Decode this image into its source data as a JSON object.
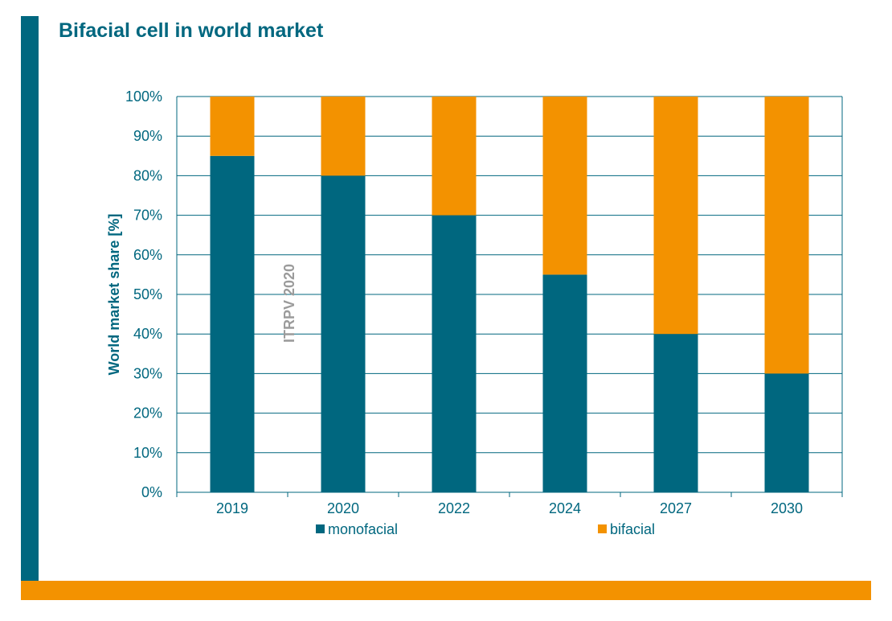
{
  "title": "Bifacial cell in world market",
  "colors": {
    "accent_blue": "#00677F",
    "accent_orange": "#F39200",
    "grid": "#00677F",
    "watermark": "#9B9B9B"
  },
  "watermark": "ITRPV 2020",
  "chart_data": {
    "type": "bar",
    "stacked": true,
    "title": "Bifacial cell in world market",
    "xlabel": "",
    "ylabel": "World market share [%]",
    "ylim": [
      0,
      100
    ],
    "yticks": [
      "0%",
      "10%",
      "20%",
      "30%",
      "40%",
      "50%",
      "60%",
      "70%",
      "80%",
      "90%",
      "100%"
    ],
    "categories": [
      "2019",
      "2020",
      "2022",
      "2024",
      "2027",
      "2030"
    ],
    "series": [
      {
        "name": "monofacial",
        "color": "#00677F",
        "values": [
          85,
          80,
          70,
          55,
          40,
          30
        ]
      },
      {
        "name": "bifacial",
        "color": "#F39200",
        "values": [
          15,
          20,
          30,
          45,
          60,
          70
        ]
      }
    ],
    "legend_position": "bottom"
  }
}
